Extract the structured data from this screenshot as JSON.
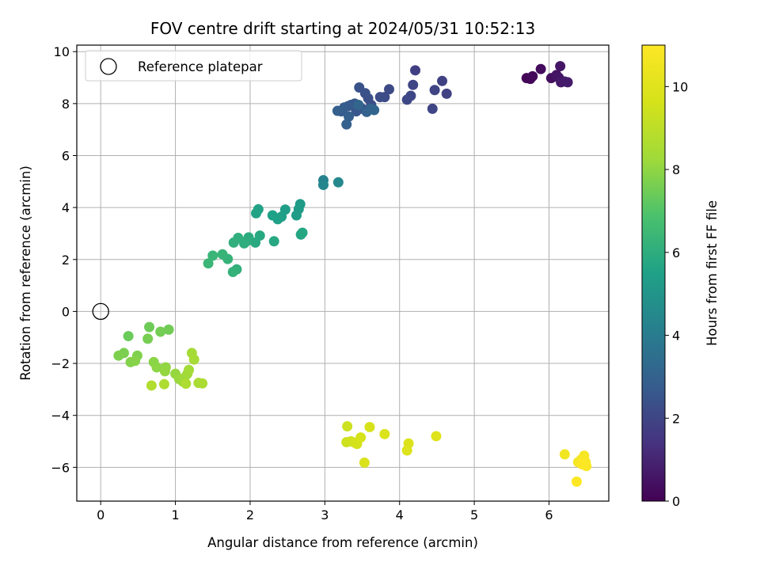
{
  "chart_data": {
    "type": "scatter",
    "title": "FOV centre drift starting at 2024/05/31 10:52:13",
    "xlabel": "Angular distance from reference (arcmin)",
    "ylabel": "Rotation from reference (arcmin)",
    "xlim": [
      -0.32,
      6.8
    ],
    "ylim": [
      -7.3,
      10.25
    ],
    "xticks": [
      0,
      1,
      2,
      3,
      4,
      5,
      6
    ],
    "yticks": [
      -6,
      -4,
      -2,
      0,
      2,
      4,
      6,
      8,
      10
    ],
    "grid": true,
    "legend": {
      "placement": "top-left",
      "entries": [
        "Reference platepar"
      ]
    },
    "reference_point": {
      "x": 0,
      "y": 0,
      "label": "Reference platepar",
      "marker": "open-circle"
    },
    "colorbar": {
      "label": "Hours from first FF file",
      "colormap": "viridis",
      "range": [
        0,
        11
      ],
      "ticks": [
        0,
        2,
        4,
        6,
        8,
        10
      ]
    },
    "series": [
      {
        "points": [
          [
            5.7,
            8.98,
            0.1
          ],
          [
            5.75,
            8.95,
            0.15
          ],
          [
            5.78,
            9.05,
            0.2
          ],
          [
            5.89,
            9.33,
            0.3
          ],
          [
            6.03,
            8.98,
            0.4
          ],
          [
            6.1,
            9.1,
            0.5
          ],
          [
            6.13,
            9.0,
            0.55
          ],
          [
            6.15,
            9.44,
            0.6
          ],
          [
            6.16,
            8.82,
            0.65
          ],
          [
            6.21,
            8.85,
            0.7
          ],
          [
            6.25,
            8.82,
            0.75
          ],
          [
            4.21,
            9.28,
            1.8
          ],
          [
            4.57,
            8.87,
            1.85
          ],
          [
            4.63,
            8.38,
            1.9
          ],
          [
            4.47,
            8.52,
            1.95
          ],
          [
            4.44,
            7.8,
            2.0
          ],
          [
            4.18,
            8.72,
            2.0
          ],
          [
            4.15,
            8.3,
            2.05
          ],
          [
            4.1,
            8.15,
            2.1
          ],
          [
            3.86,
            8.55,
            2.15
          ],
          [
            3.8,
            8.25,
            2.2
          ],
          [
            3.74,
            8.25,
            2.25
          ],
          [
            3.62,
            7.95,
            2.3
          ],
          [
            3.58,
            8.2,
            2.35
          ],
          [
            3.54,
            8.4,
            2.4
          ],
          [
            3.46,
            8.62,
            2.45
          ],
          [
            3.5,
            7.8,
            2.5
          ],
          [
            3.42,
            7.7,
            2.55
          ],
          [
            3.4,
            8.0,
            2.6
          ],
          [
            3.35,
            7.95,
            2.65
          ],
          [
            3.31,
            7.9,
            2.7
          ],
          [
            3.26,
            7.85,
            2.75
          ],
          [
            3.22,
            7.7,
            2.8
          ],
          [
            3.17,
            7.72,
            2.85
          ],
          [
            3.32,
            7.5,
            2.9
          ],
          [
            3.29,
            7.2,
            2.95
          ],
          [
            3.56,
            7.68,
            3.0
          ],
          [
            3.61,
            7.8,
            3.05
          ],
          [
            3.66,
            7.75,
            3.1
          ],
          [
            3.45,
            7.95,
            3.15
          ],
          [
            2.98,
            5.05,
            4.3
          ],
          [
            2.98,
            4.87,
            4.4
          ],
          [
            3.18,
            4.97,
            4.5
          ],
          [
            2.67,
            4.13,
            5.2
          ],
          [
            2.65,
            3.94,
            5.25
          ],
          [
            2.62,
            3.7,
            5.3
          ],
          [
            2.47,
            3.92,
            5.35
          ],
          [
            2.42,
            3.65,
            5.4
          ],
          [
            2.37,
            3.55,
            5.45
          ],
          [
            2.3,
            3.7,
            5.5
          ],
          [
            2.11,
            3.93,
            5.55
          ],
          [
            2.08,
            3.78,
            5.6
          ],
          [
            2.68,
            2.96,
            5.65
          ],
          [
            2.7,
            3.03,
            5.7
          ],
          [
            2.32,
            2.7,
            5.75
          ],
          [
            2.13,
            2.92,
            5.8
          ],
          [
            2.07,
            2.65,
            5.85
          ],
          [
            1.98,
            2.85,
            5.9
          ],
          [
            1.95,
            2.7,
            5.95
          ],
          [
            1.92,
            2.62,
            6.0
          ],
          [
            1.84,
            2.83,
            6.05
          ],
          [
            1.78,
            2.65,
            6.1
          ],
          [
            1.82,
            1.62,
            6.15
          ],
          [
            1.77,
            1.52,
            6.2
          ],
          [
            1.7,
            2.02,
            6.25
          ],
          [
            1.63,
            2.2,
            6.3
          ],
          [
            1.5,
            2.15,
            6.35
          ],
          [
            1.44,
            1.85,
            6.4
          ],
          [
            0.37,
            -0.95,
            7.4
          ],
          [
            0.65,
            -0.6,
            7.45
          ],
          [
            0.91,
            -0.7,
            7.5
          ],
          [
            0.8,
            -0.78,
            7.55
          ],
          [
            0.63,
            -1.05,
            7.6
          ],
          [
            0.31,
            -1.6,
            7.65
          ],
          [
            0.24,
            -1.7,
            7.7
          ],
          [
            0.49,
            -1.7,
            7.75
          ],
          [
            0.4,
            -1.95,
            7.8
          ],
          [
            0.46,
            -1.9,
            7.85
          ],
          [
            0.71,
            -1.95,
            7.9
          ],
          [
            0.75,
            -2.15,
            7.95
          ],
          [
            0.87,
            -2.15,
            8.0
          ],
          [
            0.86,
            -2.3,
            8.05
          ],
          [
            1.0,
            -2.4,
            8.1
          ],
          [
            1.05,
            -2.6,
            8.15
          ],
          [
            1.1,
            -2.7,
            8.2
          ],
          [
            1.12,
            -2.55,
            8.25
          ],
          [
            1.16,
            -2.4,
            8.3
          ],
          [
            1.18,
            -2.25,
            8.35
          ],
          [
            1.22,
            -1.6,
            8.4
          ],
          [
            1.25,
            -1.85,
            8.45
          ],
          [
            1.31,
            -2.75,
            8.5
          ],
          [
            1.36,
            -2.77,
            8.55
          ],
          [
            1.14,
            -2.78,
            8.6
          ],
          [
            0.85,
            -2.8,
            8.65
          ],
          [
            0.68,
            -2.85,
            8.7
          ],
          [
            3.3,
            -4.42,
            9.4
          ],
          [
            3.29,
            -5.03,
            9.45
          ],
          [
            3.35,
            -5.0,
            9.5
          ],
          [
            3.4,
            -5.05,
            9.55
          ],
          [
            3.43,
            -5.1,
            9.6
          ],
          [
            3.48,
            -4.85,
            9.65
          ],
          [
            3.6,
            -4.45,
            9.7
          ],
          [
            3.53,
            -5.82,
            9.75
          ],
          [
            3.8,
            -4.72,
            9.8
          ],
          [
            4.12,
            -5.08,
            9.85
          ],
          [
            4.1,
            -5.35,
            9.9
          ],
          [
            4.49,
            -4.8,
            9.95
          ],
          [
            6.21,
            -5.5,
            10.6
          ],
          [
            6.39,
            -5.8,
            10.7
          ],
          [
            6.43,
            -5.7,
            10.75
          ],
          [
            6.47,
            -5.55,
            10.8
          ],
          [
            6.49,
            -5.8,
            10.85
          ],
          [
            6.5,
            -5.95,
            10.9
          ],
          [
            6.44,
            -5.88,
            10.95
          ],
          [
            6.37,
            -6.55,
            11.0
          ]
        ]
      }
    ]
  }
}
